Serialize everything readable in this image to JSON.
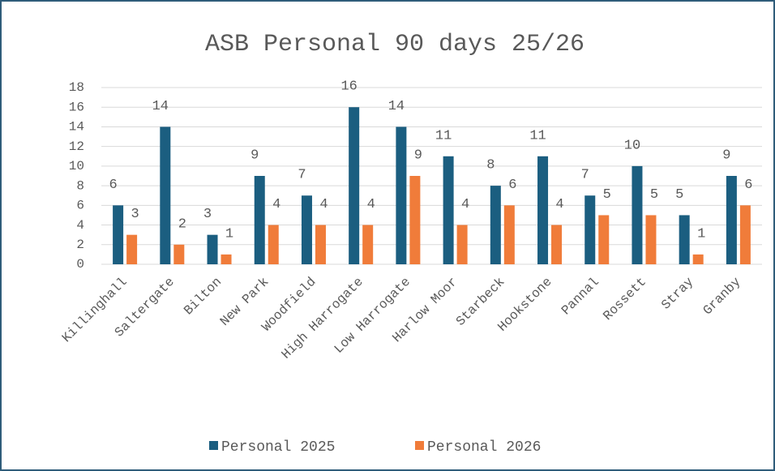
{
  "chart_data": {
    "type": "bar",
    "title": "ASB Personal 90 days 25/26",
    "categories": [
      "Killinghall",
      "Saltergate",
      "Bilton",
      "New Park",
      "Woodfield",
      "High Harrogate",
      "Low Harrogate",
      "Harlow Moor",
      "Starbeck",
      "Hookstone",
      "Pannal",
      "Rossett",
      "Stray",
      "Granby"
    ],
    "series": [
      {
        "name": "Personal 2025",
        "color": "#1b5e80",
        "values": [
          6,
          14,
          3,
          9,
          7,
          16,
          14,
          11,
          8,
          11,
          7,
          10,
          5,
          9
        ]
      },
      {
        "name": "Personal 2026",
        "color": "#f07c3a",
        "values": [
          3,
          2,
          1,
          4,
          4,
          4,
          9,
          4,
          6,
          4,
          5,
          5,
          1,
          6
        ]
      }
    ],
    "ylim": [
      0,
      18
    ],
    "yticks": [
      0,
      2,
      4,
      6,
      8,
      10,
      12,
      14,
      16,
      18
    ],
    "grid": true,
    "legend": "bottom"
  }
}
